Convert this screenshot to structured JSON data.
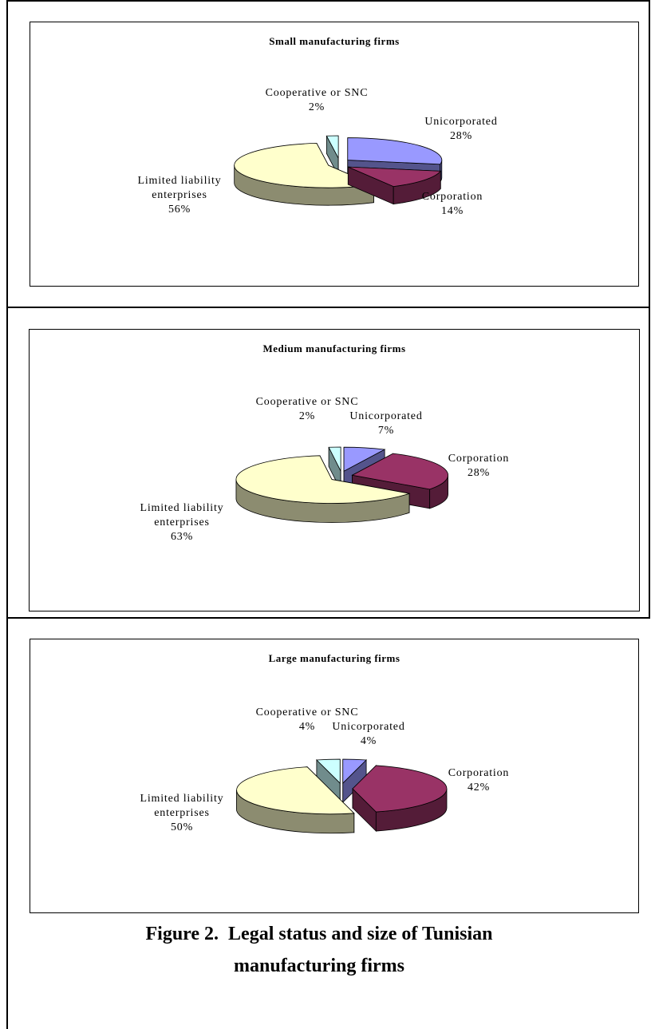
{
  "chart_data": [
    {
      "type": "pie",
      "title": "Small manufacturing firms",
      "slices": [
        {
          "name": "Unicorporated",
          "value": 28,
          "label": "Unicorporated",
          "pct": "28%",
          "color": "#9999ff"
        },
        {
          "name": "Corporation",
          "value": 14,
          "label": "Corporation",
          "pct": "14%",
          "color": "#993366"
        },
        {
          "name": "Limited liability enterprises",
          "value": 56,
          "label": "Limited liability enterprises",
          "pct": "56%",
          "color": "#ffffcc"
        },
        {
          "name": "Cooperative or SNC",
          "value": 2,
          "label": "Cooperative or SNC",
          "pct": "2%",
          "color": "#ccffff"
        }
      ]
    },
    {
      "type": "pie",
      "title": "Medium manufacturing firms",
      "slices": [
        {
          "name": "Unicorporated",
          "value": 7,
          "label": "Unicorporated",
          "pct": "7%",
          "color": "#9999ff"
        },
        {
          "name": "Corporation",
          "value": 28,
          "label": "Corporation",
          "pct": "28%",
          "color": "#993366"
        },
        {
          "name": "Limited liability enterprises",
          "value": 63,
          "label": "Limited liability enterprises",
          "pct": "63%",
          "color": "#ffffcc"
        },
        {
          "name": "Cooperative or SNC",
          "value": 2,
          "label": "Cooperative or SNC",
          "pct": "2%",
          "color": "#ccffff"
        }
      ]
    },
    {
      "type": "pie",
      "title": "Large manufacturing firms",
      "slices": [
        {
          "name": "Unicorporated",
          "value": 4,
          "label": "Unicorporated",
          "pct": "4%",
          "color": "#9999ff"
        },
        {
          "name": "Corporation",
          "value": 42,
          "label": "Corporation",
          "pct": "42%",
          "color": "#993366"
        },
        {
          "name": "Limited liability enterprises",
          "value": 50,
          "label": "Limited liability enterprises",
          "pct": "50%",
          "color": "#ffffcc"
        },
        {
          "name": "Cooperative or SNC",
          "value": 4,
          "label": "Cooperative or SNC",
          "pct": "4%",
          "color": "#ccffff"
        }
      ]
    }
  ],
  "caption": {
    "line1": "Figure 2.  Legal status and size of Tunisian",
    "line2": "manufacturing firms"
  }
}
